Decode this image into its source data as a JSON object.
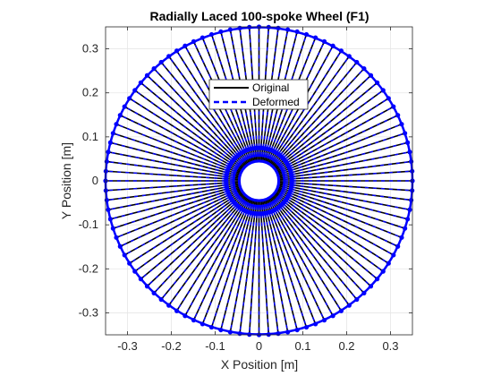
{
  "chart_data": {
    "type": "line",
    "title": "Radially Laced 100-spoke Wheel (F1)",
    "xlabel": "X Position [m]",
    "ylabel": "Y Position [m]",
    "xlim": [
      -0.35,
      0.35
    ],
    "ylim": [
      -0.35,
      0.35
    ],
    "xticks": [
      -0.3,
      -0.2,
      -0.1,
      0,
      0.1,
      0.2,
      0.3
    ],
    "yticks": [
      -0.3,
      -0.2,
      -0.1,
      0,
      0.1,
      0.2,
      0.3
    ],
    "xtick_labels": [
      "-0.3",
      "-0.2",
      "-0.1",
      "0",
      "0.1",
      "0.2",
      "0.3"
    ],
    "ytick_labels": [
      "-0.3",
      "-0.2",
      "-0.1",
      "0",
      "0.1",
      "0.2",
      "0.3"
    ],
    "grid": true,
    "legend_position": "top-center",
    "wheel": {
      "spoke_count": 100,
      "rim_radius": 0.35,
      "hub_radius": 0.04,
      "hub_node_radius": 0.075,
      "inner_hole_radius": 0.045
    },
    "series": [
      {
        "name": "Original",
        "color": "#000000",
        "style": "solid"
      },
      {
        "name": "Deformed",
        "color": "#0000ff",
        "style": "dashed"
      }
    ]
  }
}
